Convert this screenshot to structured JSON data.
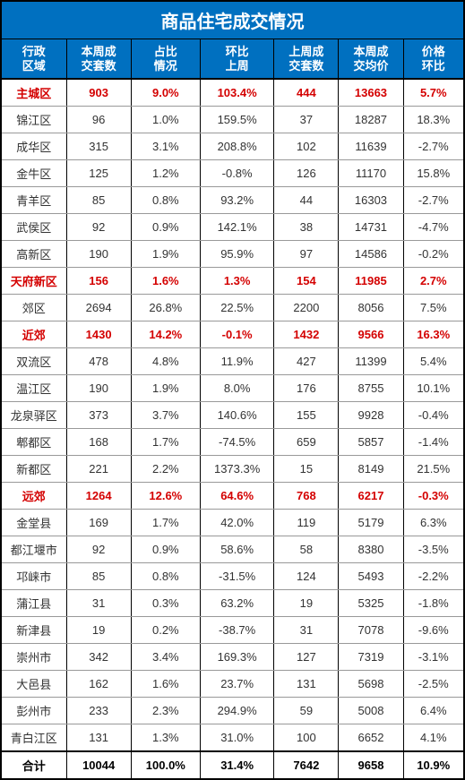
{
  "title": "商品住宅成交情况",
  "columns": [
    "行政区域",
    "本周成交套数",
    "占比情况",
    "环比上周",
    "上周成交套数",
    "本周成交均价",
    "价格环比"
  ],
  "rows": [
    {
      "highlight": true,
      "cells": [
        "主城区",
        "903",
        "9.0%",
        "103.4%",
        "444",
        "13663",
        "5.7%"
      ]
    },
    {
      "highlight": false,
      "cells": [
        "锦江区",
        "96",
        "1.0%",
        "159.5%",
        "37",
        "18287",
        "18.3%"
      ]
    },
    {
      "highlight": false,
      "cells": [
        "成华区",
        "315",
        "3.1%",
        "208.8%",
        "102",
        "11639",
        "-2.7%"
      ]
    },
    {
      "highlight": false,
      "cells": [
        "金牛区",
        "125",
        "1.2%",
        "-0.8%",
        "126",
        "11170",
        "15.8%"
      ]
    },
    {
      "highlight": false,
      "cells": [
        "青羊区",
        "85",
        "0.8%",
        "93.2%",
        "44",
        "16303",
        "-2.7%"
      ]
    },
    {
      "highlight": false,
      "cells": [
        "武侯区",
        "92",
        "0.9%",
        "142.1%",
        "38",
        "14731",
        "-4.7%"
      ]
    },
    {
      "highlight": false,
      "cells": [
        "高新区",
        "190",
        "1.9%",
        "95.9%",
        "97",
        "14586",
        "-0.2%"
      ]
    },
    {
      "highlight": true,
      "cells": [
        "天府新区",
        "156",
        "1.6%",
        "1.3%",
        "154",
        "11985",
        "2.7%"
      ]
    },
    {
      "highlight": false,
      "cells": [
        "郊区",
        "2694",
        "26.8%",
        "22.5%",
        "2200",
        "8056",
        "7.5%"
      ]
    },
    {
      "highlight": true,
      "cells": [
        "近郊",
        "1430",
        "14.2%",
        "-0.1%",
        "1432",
        "9566",
        "16.3%"
      ]
    },
    {
      "highlight": false,
      "cells": [
        "双流区",
        "478",
        "4.8%",
        "11.9%",
        "427",
        "11399",
        "5.4%"
      ]
    },
    {
      "highlight": false,
      "cells": [
        "温江区",
        "190",
        "1.9%",
        "8.0%",
        "176",
        "8755",
        "10.1%"
      ]
    },
    {
      "highlight": false,
      "cells": [
        "龙泉驿区",
        "373",
        "3.7%",
        "140.6%",
        "155",
        "9928",
        "-0.4%"
      ]
    },
    {
      "highlight": false,
      "cells": [
        "郫都区",
        "168",
        "1.7%",
        "-74.5%",
        "659",
        "5857",
        "-1.4%"
      ]
    },
    {
      "highlight": false,
      "cells": [
        "新都区",
        "221",
        "2.2%",
        "1373.3%",
        "15",
        "8149",
        "21.5%"
      ]
    },
    {
      "highlight": true,
      "cells": [
        "远郊",
        "1264",
        "12.6%",
        "64.6%",
        "768",
        "6217",
        "-0.3%"
      ]
    },
    {
      "highlight": false,
      "cells": [
        "金堂县",
        "169",
        "1.7%",
        "42.0%",
        "119",
        "5179",
        "6.3%"
      ]
    },
    {
      "highlight": false,
      "cells": [
        "都江堰市",
        "92",
        "0.9%",
        "58.6%",
        "58",
        "8380",
        "-3.5%"
      ]
    },
    {
      "highlight": false,
      "cells": [
        "邛崃市",
        "85",
        "0.8%",
        "-31.5%",
        "124",
        "5493",
        "-2.2%"
      ]
    },
    {
      "highlight": false,
      "cells": [
        "蒲江县",
        "31",
        "0.3%",
        "63.2%",
        "19",
        "5325",
        "-1.8%"
      ]
    },
    {
      "highlight": false,
      "cells": [
        "新津县",
        "19",
        "0.2%",
        "-38.7%",
        "31",
        "7078",
        "-9.6%"
      ]
    },
    {
      "highlight": false,
      "cells": [
        "崇州市",
        "342",
        "3.4%",
        "169.3%",
        "127",
        "7319",
        "-3.1%"
      ]
    },
    {
      "highlight": false,
      "cells": [
        "大邑县",
        "162",
        "1.6%",
        "23.7%",
        "131",
        "5698",
        "-2.5%"
      ]
    },
    {
      "highlight": false,
      "cells": [
        "彭州市",
        "233",
        "2.3%",
        "294.9%",
        "59",
        "5008",
        "6.4%"
      ]
    },
    {
      "highlight": false,
      "cells": [
        "青白江区",
        "131",
        "1.3%",
        "31.0%",
        "100",
        "6652",
        "4.1%"
      ]
    }
  ],
  "total": {
    "cells": [
      "合计",
      "10044",
      "100.0%",
      "31.4%",
      "7642",
      "9658",
      "10.9%"
    ]
  },
  "colors": {
    "header_bg": "#0070c0",
    "header_fg": "#ffffff",
    "highlight_fg": "#d40000",
    "border": "#000000",
    "row_border": "#999999"
  },
  "col_widths_pct": [
    14,
    14,
    15,
    16,
    14,
    14,
    13
  ]
}
